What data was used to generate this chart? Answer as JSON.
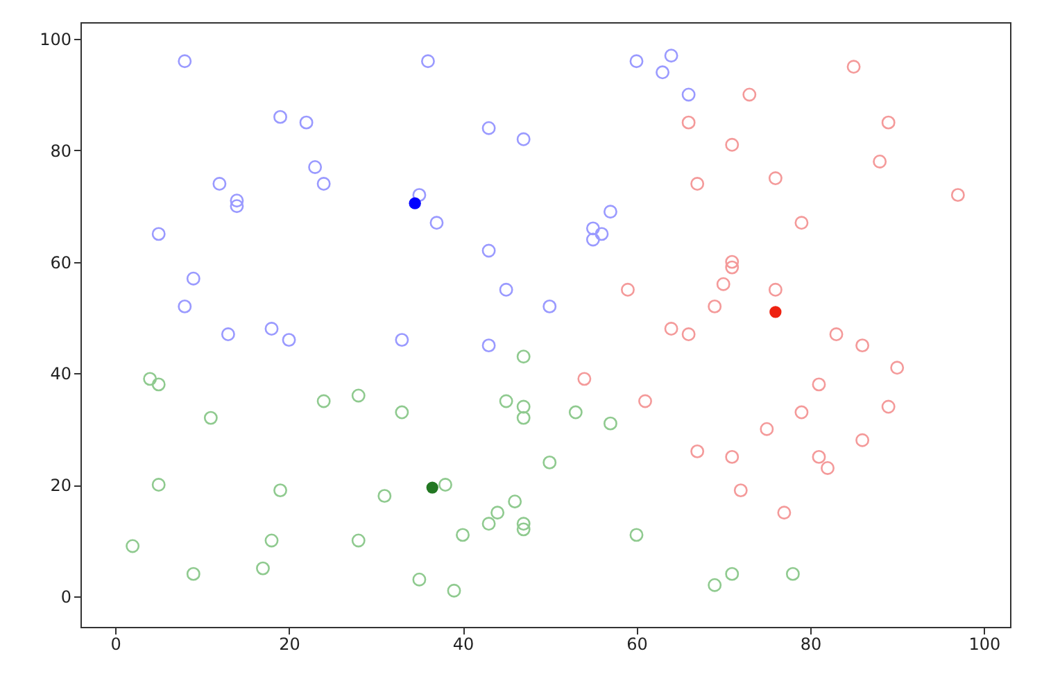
{
  "chart_data": {
    "type": "scatter",
    "xlim": [
      -4,
      103
    ],
    "ylim": [
      -5.5,
      103
    ],
    "xticks": [
      0,
      20,
      40,
      60,
      80,
      100
    ],
    "yticks": [
      0,
      20,
      40,
      60,
      80,
      100
    ],
    "grid": false,
    "marker": "circle",
    "series": [
      {
        "color": "#9a9aff",
        "x": [
          8,
          36,
          19,
          22,
          23,
          24,
          12,
          14,
          14,
          5,
          9,
          8,
          13,
          18,
          20,
          33,
          35,
          37,
          43,
          47,
          43,
          45,
          50,
          43,
          55,
          55,
          56,
          57,
          60,
          64,
          63,
          66
        ],
        "values": [
          96,
          96,
          86,
          85,
          77,
          74,
          74,
          71,
          70,
          65,
          57,
          52,
          47,
          48,
          46,
          46,
          72,
          67,
          84,
          82,
          62,
          55,
          52,
          45,
          66,
          64,
          65,
          69,
          96,
          97,
          94,
          90
        ]
      },
      {
        "color": "#f49a9a",
        "x": [
          73,
          85,
          89,
          66,
          71,
          88,
          67,
          76,
          79,
          97,
          59,
          71,
          71,
          70,
          76,
          69,
          64,
          66,
          54,
          61,
          83,
          86,
          90,
          81,
          79,
          89,
          75,
          86,
          67,
          71,
          81,
          82,
          72,
          77
        ],
        "values": [
          90,
          95,
          85,
          85,
          81,
          78,
          74,
          75,
          67,
          72,
          55,
          60,
          59,
          56,
          55,
          52,
          48,
          47,
          39,
          35,
          47,
          45,
          41,
          38,
          33,
          34,
          30,
          28,
          26,
          25,
          25,
          23,
          19,
          15
        ]
      },
      {
        "color": "#8fca8f",
        "x": [
          4,
          5,
          11,
          24,
          28,
          33,
          47,
          45,
          47,
          47,
          53,
          57,
          50,
          5,
          19,
          31,
          38,
          46,
          44,
          43,
          47,
          47,
          40,
          60,
          2,
          18,
          28,
          9,
          17,
          35,
          39,
          69,
          71,
          78
        ],
        "values": [
          39,
          38,
          32,
          35,
          36,
          33,
          43,
          35,
          34,
          32,
          33,
          31,
          24,
          20,
          19,
          18,
          20,
          17,
          15,
          13,
          13,
          12,
          11,
          11,
          9,
          10,
          10,
          4,
          5,
          3,
          1,
          2,
          4,
          4
        ]
      },
      {
        "color": "#0000ff",
        "x": [
          34.5
        ],
        "values": [
          70.5
        ]
      },
      {
        "color": "#ee2211",
        "x": [
          76
        ],
        "values": [
          51
        ]
      },
      {
        "color": "#227722",
        "x": [
          36.5
        ],
        "values": [
          19.5
        ]
      }
    ]
  }
}
